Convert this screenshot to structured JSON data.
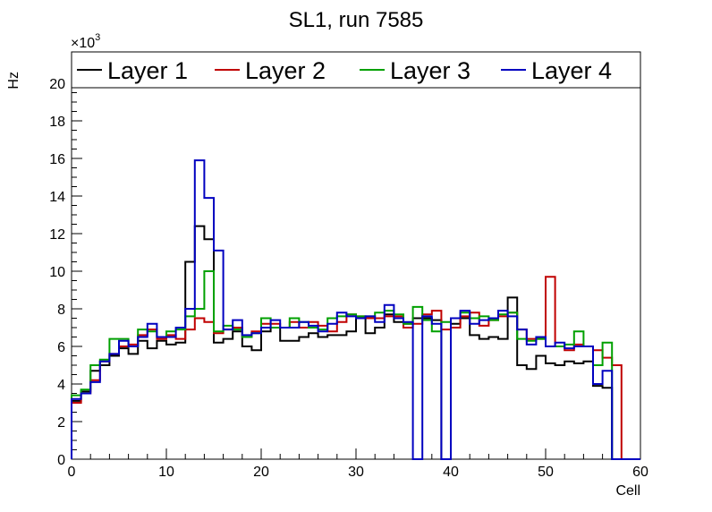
{
  "chart_data": {
    "type": "line",
    "title": "SL1, run 7585",
    "xlabel": "Cell",
    "ylabel": "Hz",
    "y_multiplier_label": "×10",
    "y_multiplier_exp": "3",
    "xlim": [
      0,
      60
    ],
    "ylim": [
      0,
      21
    ],
    "x_ticks": [
      "0",
      "10",
      "20",
      "30",
      "40",
      "50",
      "60"
    ],
    "y_ticks": [
      "0",
      "2",
      "4",
      "6",
      "8",
      "10",
      "12",
      "14",
      "16",
      "18",
      "20"
    ],
    "grid": false,
    "legend_position": "top",
    "x_bins": [
      0,
      1,
      2,
      3,
      4,
      5,
      6,
      7,
      8,
      9,
      10,
      11,
      12,
      13,
      14,
      15,
      16,
      17,
      18,
      19,
      20,
      21,
      22,
      23,
      24,
      25,
      26,
      27,
      28,
      29,
      30,
      31,
      32,
      33,
      34,
      35,
      36,
      37,
      38,
      39,
      40,
      41,
      42,
      43,
      44,
      45,
      46,
      47,
      48,
      49,
      50,
      51,
      52,
      53,
      54,
      55,
      56,
      57,
      58,
      59
    ],
    "series": [
      {
        "name": "Layer 1",
        "color": "#000000",
        "values": [
          3.1,
          3.6,
          4.7,
          5.0,
          5.5,
          5.9,
          5.6,
          6.3,
          5.9,
          6.3,
          6.1,
          6.2,
          10.5,
          12.4,
          11.7,
          6.2,
          6.4,
          6.8,
          6.0,
          5.8,
          6.8,
          7.0,
          6.3,
          6.3,
          6.5,
          6.7,
          6.5,
          6.6,
          6.6,
          6.8,
          7.5,
          6.7,
          7.0,
          7.7,
          7.3,
          7.2,
          7.5,
          7.5,
          7.4,
          0.0,
          7.2,
          7.5,
          6.6,
          6.4,
          6.5,
          6.4,
          8.6,
          5.0,
          4.8,
          5.5,
          5.1,
          5.0,
          5.2,
          5.1,
          5.2,
          3.9,
          3.8,
          0,
          0,
          0
        ]
      },
      {
        "name": "Layer 2",
        "color": "#c00000",
        "values": [
          3.0,
          3.5,
          4.2,
          5.2,
          5.6,
          6.0,
          6.1,
          6.6,
          6.9,
          6.4,
          6.6,
          6.4,
          6.9,
          7.5,
          7.3,
          6.7,
          6.9,
          7.0,
          6.5,
          6.8,
          7.2,
          7.2,
          7.0,
          7.3,
          7.0,
          7.3,
          7.1,
          6.8,
          7.3,
          7.7,
          7.6,
          7.5,
          7.5,
          7.6,
          7.6,
          7.0,
          7.2,
          7.7,
          7.9,
          6.9,
          7.0,
          7.6,
          7.8,
          7.1,
          7.4,
          7.6,
          7.8,
          6.9,
          6.4,
          6.4,
          9.7,
          6.0,
          5.8,
          6.1,
          6.0,
          5.8,
          5.4,
          5.0,
          0,
          0
        ]
      },
      {
        "name": "Layer 3",
        "color": "#00a000",
        "values": [
          3.4,
          3.7,
          5.0,
          5.3,
          6.4,
          6.4,
          6.0,
          6.9,
          6.8,
          6.5,
          6.8,
          6.9,
          7.6,
          8.0,
          10.0,
          6.8,
          7.1,
          6.9,
          6.5,
          6.7,
          7.5,
          7.0,
          7.0,
          7.5,
          7.3,
          7.0,
          6.9,
          7.5,
          7.6,
          7.7,
          7.6,
          7.6,
          7.8,
          7.9,
          7.7,
          7.2,
          8.1,
          7.4,
          6.8,
          7.3,
          7.5,
          7.8,
          7.5,
          7.6,
          7.4,
          7.7,
          7.8,
          6.4,
          6.3,
          6.4,
          6.0,
          6.0,
          6.1,
          6.8,
          6.0,
          5.0,
          6.2,
          0,
          0,
          0
        ]
      },
      {
        "name": "Layer 4",
        "color": "#0000c0",
        "values": [
          3.2,
          3.5,
          4.1,
          5.2,
          5.6,
          6.3,
          6.0,
          6.5,
          7.2,
          6.5,
          6.5,
          7.0,
          8.0,
          15.9,
          13.9,
          11.1,
          6.9,
          7.4,
          6.6,
          6.7,
          7.0,
          7.4,
          7.0,
          7.0,
          7.3,
          7.1,
          6.8,
          7.2,
          7.8,
          7.6,
          7.5,
          7.6,
          7.3,
          8.2,
          7.5,
          7.3,
          0.0,
          7.6,
          7.2,
          0.0,
          7.5,
          7.9,
          7.2,
          7.4,
          7.5,
          7.9,
          7.6,
          6.9,
          6.1,
          6.5,
          6.0,
          6.2,
          5.9,
          6.0,
          6.0,
          4.0,
          4.7,
          0,
          0,
          0
        ]
      }
    ]
  }
}
